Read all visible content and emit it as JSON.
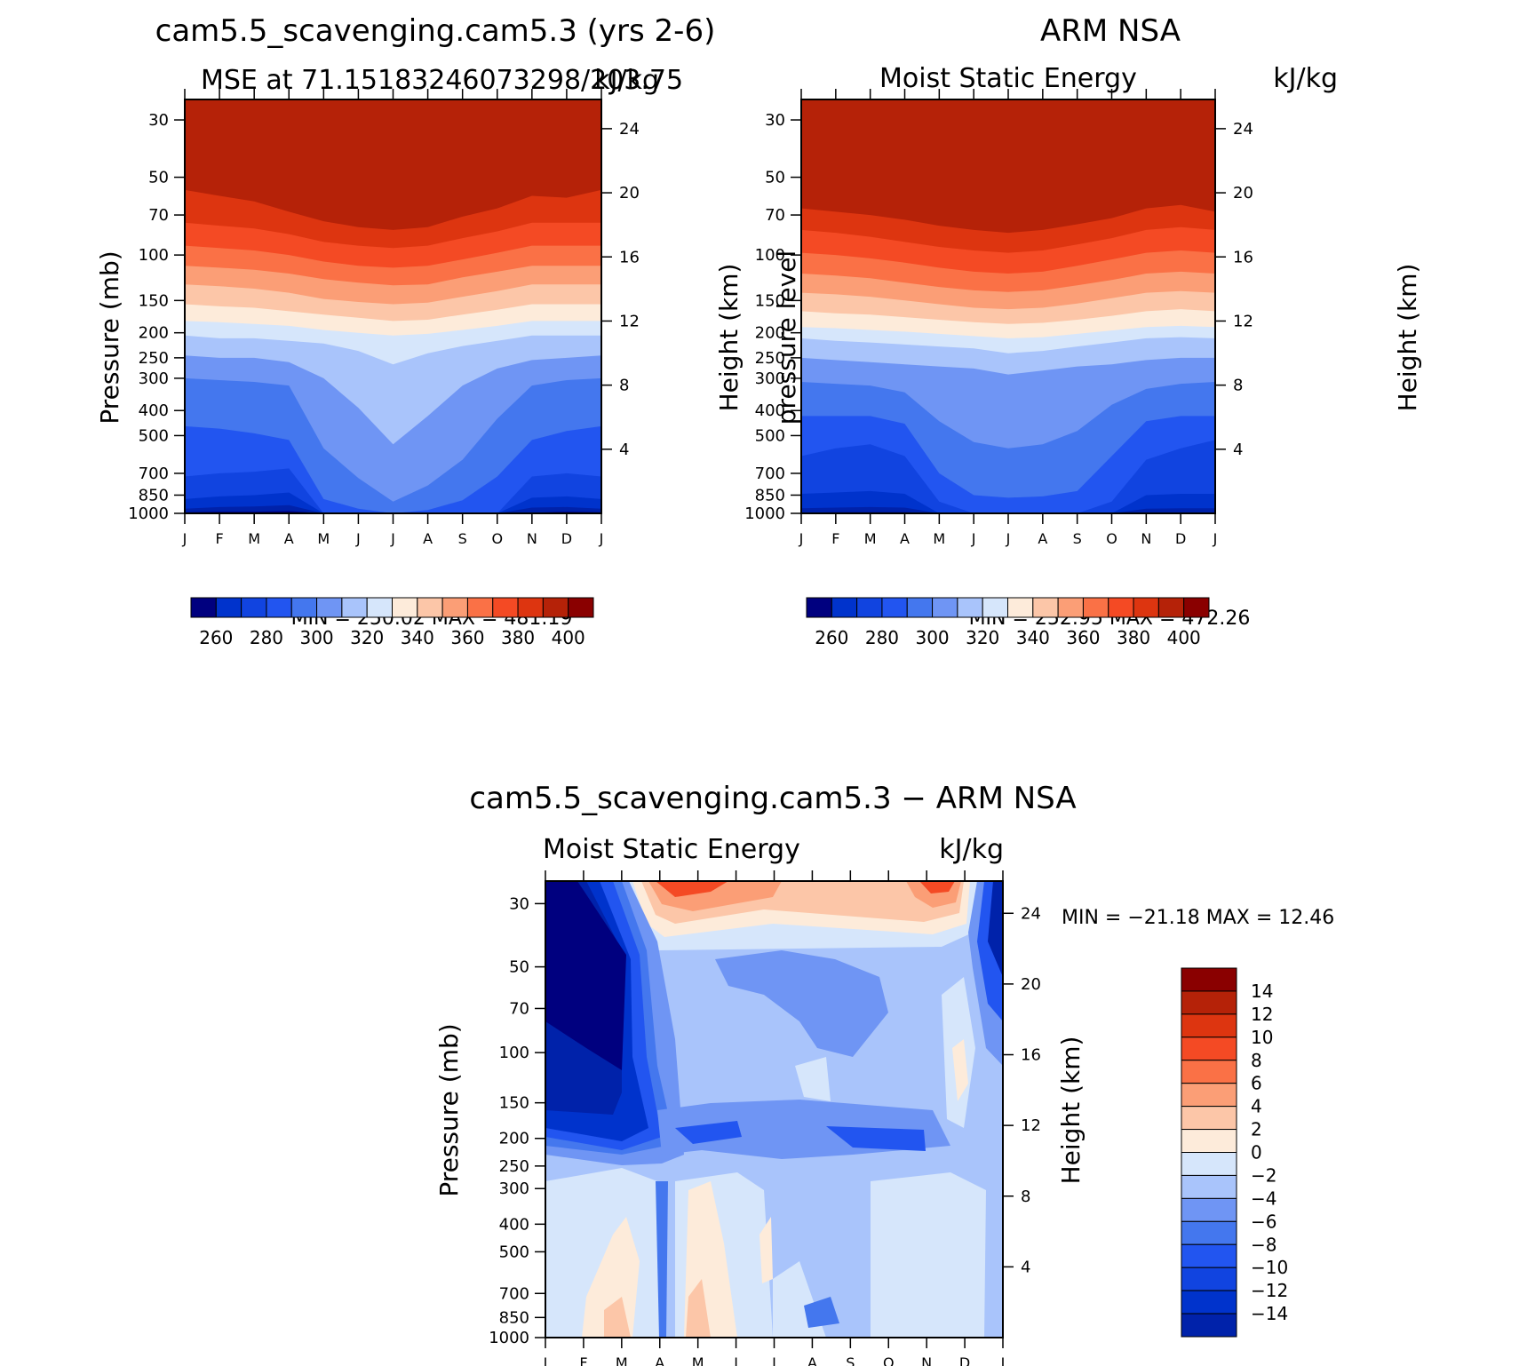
{
  "chart_data": [
    {
      "type": "heatmap",
      "id": "p1",
      "title": "cam5.5_scavenging.cam5.3 (yrs 2-6)",
      "left_string": "MSE at 71.15183246073298/203.75",
      "right_string": "kJ/kg",
      "ylabel": "Pressure (mb)",
      "ylabel_right": "Height (km)",
      "y_ticks": [
        30,
        50,
        70,
        100,
        150,
        200,
        250,
        300,
        400,
        500,
        700,
        850,
        1000
      ],
      "y_ticks_right": [
        24,
        20,
        16,
        12,
        8,
        4
      ],
      "x_ticks": [
        "J",
        "F",
        "M",
        "A",
        "M",
        "J",
        "J",
        "A",
        "S",
        "O",
        "N",
        "D",
        "J"
      ],
      "min_max": "MIN = 250.02 MAX = 481.19",
      "min": 250.02,
      "max": 481.19,
      "levels": [
        260,
        270,
        280,
        290,
        300,
        310,
        320,
        330,
        340,
        350,
        360,
        370,
        380,
        390,
        400
      ],
      "colorbar_labels": [
        "260",
        "280",
        "300",
        "320",
        "340",
        "360",
        "380",
        "400"
      ],
      "level_pressures": [
        [
          990,
          985,
          985,
          980,
          1000,
          1000,
          1000,
          1000,
          1000,
          1000,
          995,
          985,
          990
        ],
        [
          960,
          945,
          940,
          930,
          1000,
          1000,
          1000,
          1000,
          1000,
          1000,
          950,
          945,
          960
        ],
        [
          880,
          860,
          850,
          830,
          1000,
          1000,
          1000,
          1000,
          1000,
          1000,
          870,
          860,
          880
        ],
        [
          720,
          700,
          690,
          670,
          1000,
          1000,
          1000,
          1000,
          1000,
          1000,
          720,
          700,
          720
        ],
        [
          460,
          470,
          490,
          520,
          880,
          960,
          1000,
          970,
          890,
          720,
          520,
          480,
          460
        ],
        [
          300,
          305,
          310,
          320,
          560,
          730,
          900,
          780,
          620,
          430,
          320,
          305,
          300
        ],
        [
          245,
          250,
          250,
          260,
          300,
          390,
          540,
          420,
          320,
          275,
          255,
          250,
          245
        ],
        [
          205,
          210,
          210,
          215,
          220,
          235,
          265,
          240,
          225,
          215,
          205,
          205,
          205
        ],
        [
          180,
          182,
          185,
          188,
          195,
          200,
          205,
          202,
          195,
          188,
          180,
          180,
          180
        ],
        [
          155,
          158,
          160,
          165,
          170,
          175,
          180,
          178,
          170,
          163,
          155,
          155,
          155
        ],
        [
          130,
          132,
          135,
          140,
          148,
          152,
          155,
          153,
          145,
          138,
          130,
          130,
          130
        ],
        [
          110,
          112,
          114,
          118,
          124,
          128,
          131,
          130,
          122,
          116,
          110,
          110,
          110
        ],
        [
          92,
          94,
          96,
          100,
          106,
          110,
          112,
          110,
          104,
          98,
          92,
          92,
          92
        ],
        [
          75,
          77,
          79,
          83,
          89,
          92,
          94,
          92,
          86,
          81,
          75,
          75,
          75
        ],
        [
          56,
          59,
          62,
          68,
          74,
          78,
          80,
          78,
          71,
          66,
          59,
          60,
          56
        ]
      ]
    },
    {
      "type": "heatmap",
      "id": "p2",
      "title": "ARM NSA",
      "left_string": "Moist Static Energy",
      "right_string": "kJ/kg",
      "ylabel": "pressure level",
      "ylabel_right": "Height (km)",
      "y_ticks": [
        30,
        50,
        70,
        100,
        150,
        200,
        250,
        300,
        400,
        500,
        700,
        850,
        1000
      ],
      "y_ticks_right": [
        24,
        20,
        16,
        12,
        8,
        4
      ],
      "x_ticks": [
        "J",
        "F",
        "M",
        "A",
        "M",
        "J",
        "J",
        "A",
        "S",
        "O",
        "N",
        "D",
        "J"
      ],
      "min_max": "MIN = 252.95 MAX = 472.26",
      "min": 252.95,
      "max": 472.26,
      "levels": [
        260,
        270,
        280,
        290,
        300,
        310,
        320,
        330,
        340,
        350,
        360,
        370,
        380,
        390,
        400
      ],
      "colorbar_labels": [
        "260",
        "280",
        "300",
        "320",
        "340",
        "360",
        "380",
        "400"
      ],
      "level_pressures": [
        [
          995,
          990,
          990,
          990,
          1000,
          1000,
          1000,
          1000,
          1000,
          1000,
          995,
          995,
          995
        ],
        [
          955,
          950,
          945,
          950,
          1000,
          1000,
          1000,
          1000,
          1000,
          1000,
          960,
          955,
          955
        ],
        [
          840,
          830,
          820,
          840,
          1000,
          1000,
          1000,
          1000,
          1000,
          1000,
          850,
          840,
          840
        ],
        [
          600,
          560,
          540,
          600,
          900,
          1000,
          1000,
          1000,
          1000,
          900,
          620,
          560,
          520
        ],
        [
          420,
          420,
          420,
          450,
          700,
          850,
          870,
          860,
          820,
          600,
          440,
          420,
          420
        ],
        [
          310,
          315,
          320,
          340,
          440,
          530,
          560,
          540,
          480,
          380,
          330,
          315,
          310
        ],
        [
          250,
          255,
          260,
          265,
          270,
          275,
          290,
          280,
          270,
          265,
          255,
          250,
          250
        ],
        [
          210,
          215,
          218,
          222,
          226,
          230,
          240,
          235,
          226,
          218,
          210,
          208,
          210
        ],
        [
          190,
          192,
          195,
          198,
          202,
          206,
          210,
          208,
          202,
          196,
          190,
          188,
          190
        ],
        [
          165,
          168,
          170,
          174,
          178,
          182,
          185,
          183,
          178,
          172,
          165,
          162,
          165
        ],
        [
          140,
          142,
          145,
          150,
          155,
          160,
          162,
          160,
          154,
          147,
          140,
          138,
          140
        ],
        [
          118,
          120,
          123,
          128,
          133,
          137,
          139,
          137,
          131,
          125,
          118,
          116,
          118
        ],
        [
          98,
          100,
          103,
          107,
          112,
          116,
          118,
          116,
          110,
          104,
          98,
          96,
          98
        ],
        [
          80,
          82,
          85,
          89,
          93,
          96,
          98,
          96,
          91,
          86,
          80,
          78,
          80
        ],
        [
          66,
          68,
          70,
          73,
          77,
          80,
          82,
          80,
          76,
          72,
          66,
          64,
          68
        ]
      ]
    },
    {
      "type": "heatmap",
      "id": "p3",
      "title": "cam5.5_scavenging.cam5.3 − ARM NSA",
      "left_string": "Moist Static Energy",
      "right_string": "kJ/kg",
      "ylabel": "Pressure (mb)",
      "ylabel_right": "Height (km)",
      "y_ticks": [
        30,
        50,
        70,
        100,
        150,
        200,
        250,
        300,
        400,
        500,
        700,
        850,
        1000
      ],
      "y_ticks_right": [
        24,
        20,
        16,
        12,
        8,
        4
      ],
      "x_ticks": [
        "J",
        "F",
        "M",
        "A",
        "M",
        "J",
        "J",
        "A",
        "S",
        "O",
        "N",
        "D",
        "J"
      ],
      "min_max": "MIN = −21.18 MAX =  12.46",
      "min": -21.18,
      "max": 12.46,
      "levels": [
        -14,
        -12,
        -10,
        -8,
        -6,
        -4,
        -2,
        0,
        2,
        4,
        6,
        8,
        10,
        12,
        14
      ],
      "colorbar_labels": [
        "14",
        "12",
        "10",
        "8",
        "6",
        "4",
        "2",
        "0",
        "−2",
        "−4",
        "−6",
        "−8",
        "−10",
        "−12",
        "−14"
      ]
    }
  ],
  "colors": {
    "palette": [
      "#00007f",
      "#0022aa",
      "#0033cc",
      "#1144e0",
      "#2255f0",
      "#4477ee",
      "#6f95f4",
      "#a9c4fb",
      "#d6e6fb",
      "#fdebda",
      "#fcc6a8",
      "#fb9e76",
      "#fa7146",
      "#f44a24",
      "#dd3510",
      "#b52208",
      "#8a0000"
    ],
    "frame": "#000000"
  }
}
